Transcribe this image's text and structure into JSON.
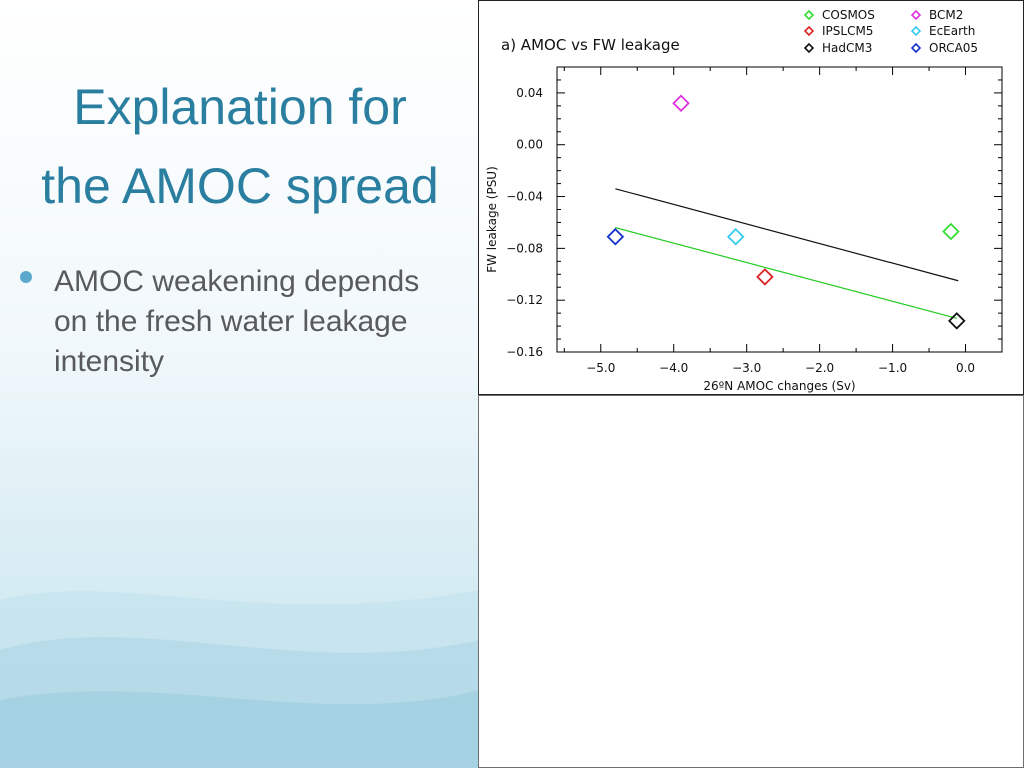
{
  "slide": {
    "title_line1": "Explanation for",
    "title_line2": "the AMOC spread",
    "bullets": [
      "AMOC weakening depends on the fresh water leakage intensity"
    ]
  },
  "colors": {
    "title": "#2a7ea0",
    "bullet_text": "#585a5c",
    "bullet_dot": "#5aa9cc"
  },
  "chart_data": {
    "type": "scatter",
    "title": "a)  AMOC  vs  FW  leakage",
    "xlabel": "26ºN AMOC changes (Sv)",
    "ylabel": "FW leakage (PSU)",
    "xlim": [
      -5.6,
      0.5
    ],
    "ylim": [
      -0.16,
      0.06
    ],
    "xticks": [
      -5.0,
      -4.0,
      -3.0,
      -2.0,
      -1.0,
      0.0
    ],
    "xtick_labels": [
      "−5.0",
      "−4.0",
      "−3.0",
      "−2.0",
      "−1.0",
      "0.0"
    ],
    "yticks": [
      0.04,
      0.0,
      -0.04,
      -0.08,
      -0.12,
      -0.16
    ],
    "ytick_labels": [
      "0.04",
      "0.00",
      "−0.04",
      "−0.08",
      "−0.12",
      "−0.16"
    ],
    "marker": "diamond",
    "legend_placement": "top-right, above plot",
    "series": [
      {
        "name": "COSMOS",
        "color": "#33dd33",
        "x": -0.2,
        "y": -0.067
      },
      {
        "name": "BCM2",
        "color": "#dd33dd",
        "x": -3.9,
        "y": 0.032
      },
      {
        "name": "IPSLCM5",
        "color": "#dd2222",
        "x": -2.75,
        "y": -0.102
      },
      {
        "name": "EcEarth",
        "color": "#33ccee",
        "x": -3.15,
        "y": -0.071
      },
      {
        "name": "HadCM3",
        "color": "#111111",
        "x": -0.12,
        "y": -0.136
      },
      {
        "name": "ORCA05",
        "color": "#1133cc",
        "x": -4.8,
        "y": -0.071
      }
    ],
    "fit_lines": [
      {
        "color": "#111111",
        "x": [
          -4.8,
          -0.1
        ],
        "y": [
          -0.034,
          -0.105
        ]
      },
      {
        "color": "#22cc22",
        "x": [
          -4.8,
          -0.12
        ],
        "y": [
          -0.064,
          -0.134
        ]
      }
    ]
  }
}
